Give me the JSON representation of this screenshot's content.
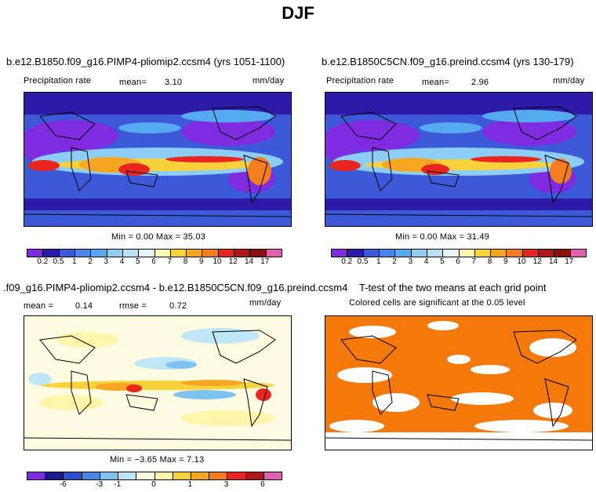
{
  "figure_title": "DJF",
  "panels": [
    {
      "title": "b.e12.B1850.f09_g16.PIMP4-pliomip2.ccsm4 (yrs 1051-1100)",
      "variable": "Precipitation rate",
      "mean_label": "mean=",
      "mean_value": "3.10",
      "units": "mm/day",
      "minmax": "Min =   0.00 Max =  35.03"
    },
    {
      "title": "b.e12.B1850C5CN.f09_g16.preind.ccsm4 (yrs 130-179)",
      "variable": "Precipitation rate",
      "mean_label": "mean=",
      "mean_value": "2.96",
      "units": "mm/day",
      "minmax": "Min =   0.00 Max =  31.49"
    },
    {
      "title": ".f09_g16.PIMP4-pliomip2.ccsm4 - b.e12.B1850C5CN.f09_g16.preind.ccsm4",
      "mean_label": "mean =",
      "mean_value": "0.14",
      "rmse_label": "rmse =",
      "rmse_value": "0.72",
      "units": "mm/day",
      "minmax": "Min =  −3.65 Max =   7.13"
    },
    {
      "title": "T-test of the two means at each grid point",
      "subtitle": "Colored cells are significant at the 0.05 level"
    }
  ],
  "chart_data": [
    {
      "type": "heatmap",
      "title": "b.e12.B1850.f09_g16.PIMP4-pliomip2.ccsm4 (yrs 1051-1100)",
      "variable": "Precipitation rate",
      "units": "mm/day",
      "mean": 3.1,
      "min": 0.0,
      "max": 35.03,
      "colorbar_levels": [
        "0.2",
        "0.5",
        "1",
        "2",
        "3",
        "4",
        "5",
        "6",
        "7",
        "8",
        "9",
        "10",
        "12",
        "14",
        "17"
      ],
      "colorbar_colors": [
        "#7f2be0",
        "#2d1aa8",
        "#3c5ad8",
        "#4a86e8",
        "#56aaf0",
        "#8ccef5",
        "#b8e3f7",
        "#e8f6f8",
        "#fff8b0",
        "#f7d23a",
        "#f5a623",
        "#f57c1f",
        "#e8261f",
        "#b01818",
        "#8a1010",
        "#e060b0"
      ],
      "grid": false
    },
    {
      "type": "heatmap",
      "title": "b.e12.B1850C5CN.f09_g16.preind.ccsm4 (yrs 130-179)",
      "variable": "Precipitation rate",
      "units": "mm/day",
      "mean": 2.96,
      "min": 0.0,
      "max": 31.49,
      "colorbar_levels": [
        "0.2",
        "0.5",
        "1",
        "2",
        "3",
        "4",
        "5",
        "6",
        "7",
        "8",
        "9",
        "10",
        "12",
        "14",
        "17"
      ],
      "colorbar_colors": [
        "#7f2be0",
        "#2d1aa8",
        "#3c5ad8",
        "#4a86e8",
        "#56aaf0",
        "#8ccef5",
        "#b8e3f7",
        "#e8f6f8",
        "#fff8b0",
        "#f7d23a",
        "#f5a623",
        "#f57c1f",
        "#e8261f",
        "#b01818",
        "#8a1010",
        "#e060b0"
      ],
      "grid": false
    },
    {
      "type": "heatmap",
      "title": ".f09_g16.PIMP4-pliomip2.ccsm4 - b.e12.B1850C5CN.f09_g16.preind.ccsm4",
      "units": "mm/day",
      "mean": 0.14,
      "rmse": 0.72,
      "min": -3.65,
      "max": 7.13,
      "colorbar_ticks": [
        "-6",
        "-3",
        "-1",
        "0",
        "1",
        "3",
        "6"
      ],
      "colorbar_colors": [
        "#7f2be0",
        "#1b1a8c",
        "#2b4fd0",
        "#4a86e8",
        "#7ec3f0",
        "#bfe6f7",
        "#fffbe0",
        "#fff4a8",
        "#f7d23a",
        "#f5a623",
        "#f57c1f",
        "#e8261f",
        "#b01818",
        "#e060b0"
      ],
      "grid": false
    },
    {
      "type": "heatmap",
      "title": "T-test of the two means at each grid point",
      "subtitle": "Colored cells are significant at the 0.05 level",
      "significance_level": 0.05,
      "significant_color": "#f5780a",
      "grid": false
    }
  ]
}
